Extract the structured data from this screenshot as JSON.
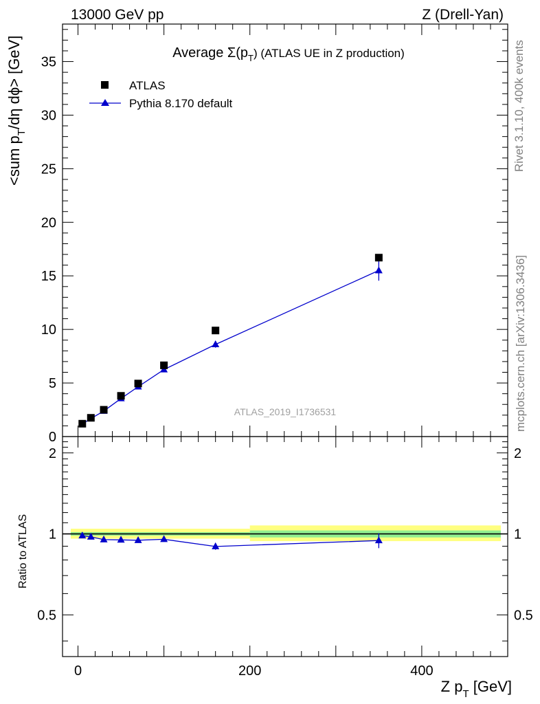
{
  "header": {
    "left": "13000 GeV pp",
    "right": "Z (Drell-Yan)"
  },
  "side_labels": {
    "rivet": "Rivet 3.1.10,  400k events",
    "mcplots": "mcplots.cern.ch [arXiv:1306.3436]"
  },
  "chart_data": [
    {
      "type": "scatter",
      "title": "Average Σ(p_T) (ATLAS UE in Z production)",
      "title_parts": {
        "pre": "Average ",
        "sigma": "Σ(p",
        "sub": "T",
        "post": ") (ATLAS UE in Z production)"
      },
      "ylabel": "<sum p_T/dη dϕ> [GeV]",
      "ylabel_parts": {
        "pre": "<sum p",
        "sub": "T",
        "post": "/dη dϕ> [GeV]"
      },
      "xlabel": "Z p_T [GeV]",
      "xlabel_parts": {
        "pre": "Z p",
        "sub": "T",
        "post": " [GeV]"
      },
      "xlim": [
        -18,
        500
      ],
      "ylim": [
        0,
        38.5
      ],
      "y_ticks": [
        0,
        5,
        10,
        15,
        20,
        25,
        30,
        35
      ],
      "watermark": "ATLAS_2019_I1736531",
      "legend": {
        "position": "top-left"
      },
      "series": [
        {
          "name": "ATLAS",
          "marker": "square",
          "color": "#000000",
          "x": [
            5,
            15,
            30,
            50,
            70,
            100,
            160,
            350
          ],
          "y": [
            1.2,
            1.75,
            2.5,
            3.8,
            4.95,
            6.65,
            9.9,
            16.7
          ]
        },
        {
          "name": "Pythia 8.170 default",
          "marker": "triangle",
          "color": "#0000cc",
          "x": [
            5,
            15,
            30,
            50,
            70,
            100,
            160,
            350
          ],
          "y": [
            1.18,
            1.68,
            2.38,
            3.55,
            4.65,
            6.25,
            8.6,
            15.5
          ],
          "yerr": [
            0.05,
            0.05,
            0.08,
            0.1,
            0.1,
            0.15,
            0.3,
            0.95
          ]
        }
      ]
    },
    {
      "type": "line",
      "ylabel": "Ratio to ATLAS",
      "xlabel": "Z p_T [GeV]",
      "xlim": [
        -18,
        500
      ],
      "ylim": [
        0.35,
        2.3
      ],
      "log_y": true,
      "y_ticks": [
        0.5,
        1,
        2
      ],
      "x_ticks": [
        0,
        200,
        400
      ],
      "reference": 1,
      "bands": [
        {
          "x": [
            -18,
            200
          ],
          "inner": [
            0.985,
            1.015
          ],
          "outer": [
            0.96,
            1.045
          ]
        },
        {
          "x": [
            200,
            500
          ],
          "inner": [
            0.97,
            1.03
          ],
          "outer": [
            0.94,
            1.075
          ]
        }
      ],
      "series": [
        {
          "name": "Pythia 8.170 default",
          "color": "#0000cc",
          "x": [
            5,
            15,
            30,
            50,
            70,
            100,
            160,
            350
          ],
          "y": [
            0.985,
            0.975,
            0.952,
            0.95,
            0.947,
            0.955,
            0.898,
            0.945
          ],
          "yerr": [
            0.01,
            0.01,
            0.01,
            0.01,
            0.01,
            0.015,
            0.025,
            0.06
          ]
        }
      ]
    }
  ]
}
